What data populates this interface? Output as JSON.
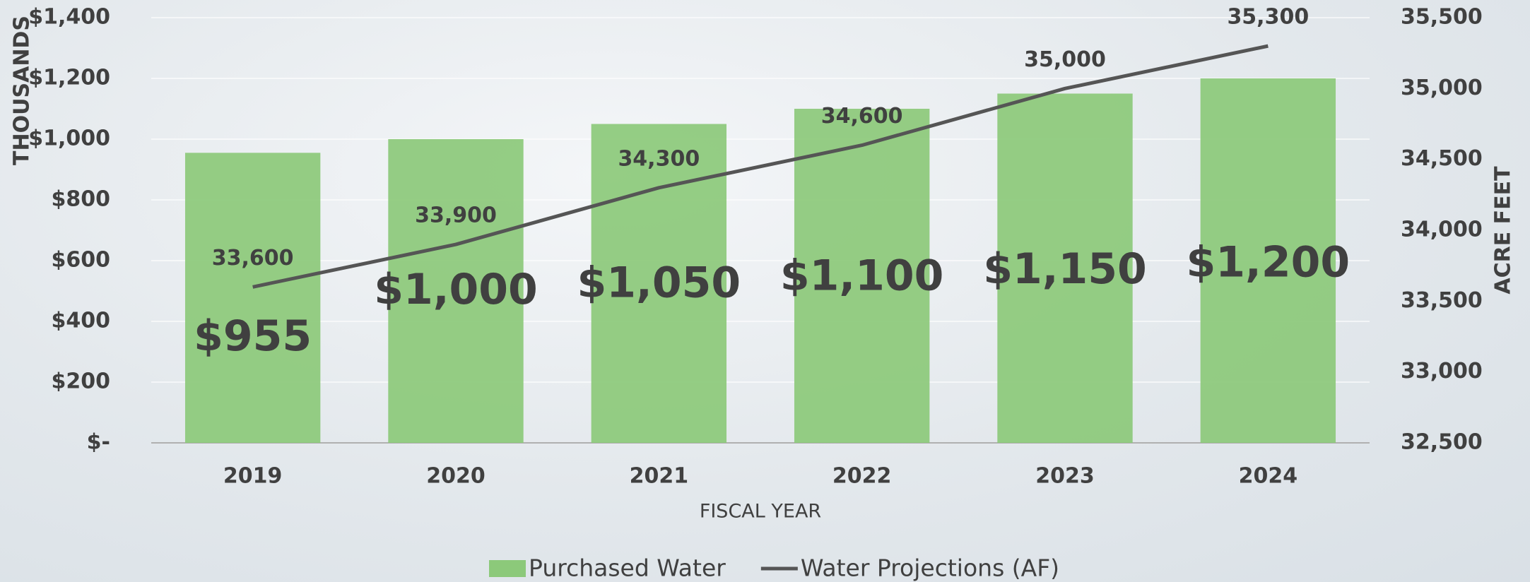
{
  "chart_data": {
    "type": "combo",
    "categories": [
      "2019",
      "2020",
      "2021",
      "2022",
      "2023",
      "2024"
    ],
    "series": [
      {
        "name": "Purchased Water",
        "type": "bar",
        "color": "#8cc97a",
        "values": [
          955,
          1000,
          1050,
          1100,
          1150,
          1200
        ],
        "value_labels": [
          "$955",
          "$1,000",
          "$1,050",
          "$1,100",
          "$1,150",
          "$1,200"
        ]
      },
      {
        "name": "Water Projections (AF)",
        "type": "line",
        "axis": "y2",
        "color": "#555555",
        "values": [
          33600,
          33900,
          34300,
          34600,
          35000,
          35300
        ],
        "value_labels": [
          "33,600",
          "33,900",
          "34,300",
          "34,600",
          "35,000",
          "35,300"
        ]
      }
    ],
    "ylabel": "THOUSANDS",
    "y2label": "ACRE FEET",
    "xlabel": "FISCAL YEAR",
    "ylim": [
      0,
      1400
    ],
    "yticks": [
      {
        "value": 0,
        "label": "$-"
      },
      {
        "value": 200,
        "label": "$200"
      },
      {
        "value": 400,
        "label": "$400"
      },
      {
        "value": 600,
        "label": "$600"
      },
      {
        "value": 800,
        "label": "$800"
      },
      {
        "value": 1000,
        "label": "$1,000"
      },
      {
        "value": 1200,
        "label": "$1,200"
      },
      {
        "value": 1400,
        "label": "$1,400"
      }
    ],
    "y2lim": [
      32500,
      35500
    ],
    "y2ticks": [
      {
        "value": 32500,
        "label": "32,500"
      },
      {
        "value": 33000,
        "label": "33,000"
      },
      {
        "value": 33500,
        "label": "33,500"
      },
      {
        "value": 34000,
        "label": "34,000"
      },
      {
        "value": 34500,
        "label": "34,500"
      },
      {
        "value": 35000,
        "label": "35,000"
      },
      {
        "value": 35500,
        "label": "35,500"
      }
    ],
    "grid": true,
    "legend": "bottom"
  }
}
